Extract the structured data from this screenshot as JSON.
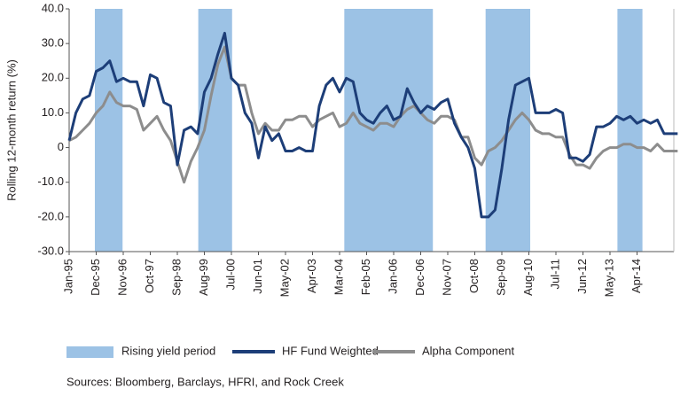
{
  "chart_data": {
    "type": "line",
    "y_label": "Rolling 12-month return (%)",
    "sources": "Sources: Bloomberg, Barclays, HFRI, and Rock Creek",
    "categories": [
      "Jan-95",
      null,
      null,
      null,
      "Dec-95",
      null,
      null,
      null,
      "Nov-96",
      null,
      null,
      null,
      "Oct-97",
      null,
      null,
      null,
      "Sep-98",
      null,
      null,
      null,
      "Aug-99",
      null,
      null,
      null,
      "Jul-00",
      null,
      null,
      null,
      "Jun-01",
      null,
      null,
      null,
      "May-02",
      null,
      null,
      null,
      "Apr-03",
      null,
      null,
      null,
      "Mar-04",
      null,
      null,
      null,
      "Feb-05",
      null,
      null,
      null,
      "Jan-06",
      null,
      null,
      null,
      "Dec-06",
      null,
      null,
      null,
      "Nov-07",
      null,
      null,
      null,
      "Oct-08",
      null,
      null,
      null,
      "Sep-09",
      null,
      null,
      null,
      "Aug-10",
      null,
      null,
      null,
      "Jul-11",
      null,
      null,
      null,
      "Jun-12",
      null,
      null,
      null,
      "May-13",
      null,
      null,
      null,
      "Apr-14",
      null,
      null,
      null,
      null,
      null,
      null
    ],
    "shaded": {
      "name": "Rising yield period",
      "color": "#9cc2e5",
      "ranges": [
        [
          3.8,
          7.9
        ],
        [
          19.1,
          24.1
        ],
        [
          40.7,
          53.8
        ],
        [
          61.6,
          68.2
        ],
        [
          81.1,
          84.8
        ]
      ]
    },
    "series": [
      {
        "name": "HF Fund Weighted",
        "color": "#1d3e78",
        "values": [
          2,
          10,
          14,
          15,
          22,
          23,
          25,
          19,
          20,
          19,
          19,
          12,
          21,
          20,
          13,
          12,
          -5,
          5,
          6,
          4,
          16,
          20,
          27,
          33,
          20,
          18,
          10,
          7,
          -3,
          6,
          2,
          4,
          -1,
          -1,
          0,
          -1,
          -1,
          12,
          18,
          20,
          16,
          20,
          19,
          10,
          8,
          7,
          10,
          12,
          8,
          9,
          17,
          13,
          10,
          12,
          11,
          13,
          14,
          7,
          3,
          0,
          -6,
          -20,
          -20,
          -18,
          -6,
          8,
          18,
          19,
          20,
          10,
          10,
          10,
          11,
          10,
          -3,
          -3,
          -4,
          -2,
          6,
          6,
          7,
          9,
          8,
          9,
          7,
          8,
          7,
          8,
          4,
          4,
          4
        ]
      },
      {
        "name": "Alpha Component",
        "color": "#8d8d8d",
        "values": [
          2,
          3,
          5,
          7,
          10,
          12,
          16,
          13,
          12,
          12,
          11,
          5,
          7,
          9,
          5,
          2,
          -4,
          -10,
          -4,
          0,
          5,
          15,
          24,
          29,
          20,
          18,
          18,
          10,
          4,
          7,
          5,
          5,
          8,
          8,
          9,
          9,
          6,
          8,
          9,
          10,
          6,
          7,
          10,
          7,
          6,
          5,
          7,
          7,
          6,
          9,
          11,
          12,
          10,
          8,
          7,
          9,
          9,
          8,
          3,
          3,
          -3,
          -5,
          -1,
          0,
          2,
          5,
          8,
          10,
          8,
          5,
          4,
          4,
          3,
          3,
          -2,
          -5,
          -5,
          -6,
          -3,
          -1,
          0,
          0,
          1,
          1,
          0,
          0,
          -1,
          1,
          -1,
          -1,
          -1
        ]
      }
    ],
    "ylim": [
      -30,
      40
    ],
    "yticks": [
      {
        "value": 40,
        "label": "40.0"
      },
      {
        "value": 30,
        "label": "30.0"
      },
      {
        "value": 20,
        "label": "20.0"
      },
      {
        "value": 10,
        "label": "10.0"
      },
      0,
      {
        "value": -10,
        "label": "-10.0"
      },
      {
        "value": -20,
        "label": "-20.0"
      },
      {
        "value": -30,
        "label": "-30.0"
      }
    ]
  }
}
